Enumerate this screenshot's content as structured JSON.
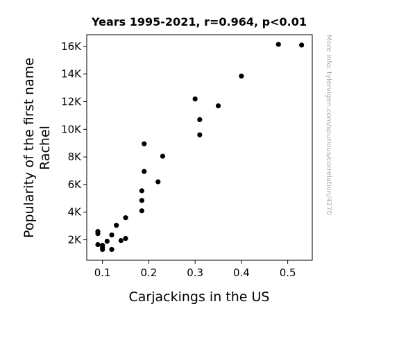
{
  "chart_data": {
    "type": "scatter",
    "title": "Years 1995-2021, r=0.964, p<0.01",
    "xlabel": "Carjackings in the US",
    "ylabel_lines": [
      "Popularity of the first name",
      "Rachel"
    ],
    "watermark": "More info: tylervigen.com/spurious/correlation/4270",
    "xlim": [
      0.066,
      0.553
    ],
    "ylim": [
      520,
      16850
    ],
    "x_ticks": [
      {
        "value": 0.1,
        "label": "0.1"
      },
      {
        "value": 0.2,
        "label": "0.2"
      },
      {
        "value": 0.3,
        "label": "0.3"
      },
      {
        "value": 0.4,
        "label": "0.4"
      },
      {
        "value": 0.5,
        "label": "0.5"
      }
    ],
    "y_ticks": [
      {
        "value": 2000,
        "label": "2K"
      },
      {
        "value": 4000,
        "label": "4K"
      },
      {
        "value": 6000,
        "label": "6K"
      },
      {
        "value": 8000,
        "label": "8K"
      },
      {
        "value": 10000,
        "label": "10K"
      },
      {
        "value": 12000,
        "label": "12K"
      },
      {
        "value": 14000,
        "label": "14K"
      },
      {
        "value": 16000,
        "label": "16K"
      }
    ],
    "marker_color": "#000000",
    "points": [
      {
        "x": 0.09,
        "y": 2600
      },
      {
        "x": 0.09,
        "y": 2450
      },
      {
        "x": 0.09,
        "y": 1650
      },
      {
        "x": 0.1,
        "y": 1600
      },
      {
        "x": 0.1,
        "y": 1450
      },
      {
        "x": 0.1,
        "y": 1300
      },
      {
        "x": 0.11,
        "y": 1900
      },
      {
        "x": 0.12,
        "y": 2350
      },
      {
        "x": 0.12,
        "y": 1300
      },
      {
        "x": 0.13,
        "y": 3050
      },
      {
        "x": 0.14,
        "y": 1950
      },
      {
        "x": 0.15,
        "y": 2100
      },
      {
        "x": 0.15,
        "y": 3600
      },
      {
        "x": 0.185,
        "y": 4100
      },
      {
        "x": 0.185,
        "y": 4850
      },
      {
        "x": 0.185,
        "y": 5550
      },
      {
        "x": 0.19,
        "y": 6950
      },
      {
        "x": 0.19,
        "y": 8950
      },
      {
        "x": 0.22,
        "y": 6200
      },
      {
        "x": 0.23,
        "y": 8050
      },
      {
        "x": 0.3,
        "y": 12200
      },
      {
        "x": 0.31,
        "y": 10700
      },
      {
        "x": 0.31,
        "y": 9600
      },
      {
        "x": 0.35,
        "y": 11700
      },
      {
        "x": 0.4,
        "y": 13850
      },
      {
        "x": 0.48,
        "y": 16150
      },
      {
        "x": 0.53,
        "y": 16100
      }
    ]
  }
}
